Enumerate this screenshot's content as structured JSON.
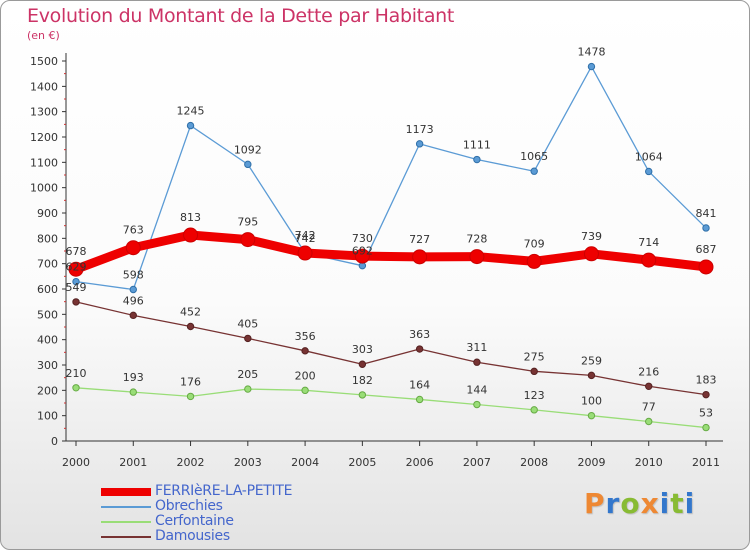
{
  "header": {
    "title": "Evolution du Montant de la Dette par Habitant",
    "subtitle": "(en €)"
  },
  "chart_data": {
    "type": "line",
    "title": "Evolution du Montant de la Dette par Habitant",
    "subtitle": "(en €)",
    "x": [
      "2000",
      "2001",
      "2002",
      "2003",
      "2004",
      "2005",
      "2006",
      "2007",
      "2008",
      "2009",
      "2010",
      "2011"
    ],
    "ylim": [
      0,
      1500
    ],
    "yticks": [
      0,
      100,
      200,
      300,
      400,
      500,
      600,
      700,
      800,
      900,
      1000,
      1100,
      1200,
      1300,
      1400,
      1500
    ],
    "grid": false,
    "legend_position": "bottom-left",
    "series": [
      {
        "name": "FERRIèRE-LA-PETITE",
        "color": "#ee0000",
        "values": [
          678,
          763,
          813,
          795,
          742,
          730,
          727,
          728,
          709,
          739,
          714,
          687
        ]
      },
      {
        "name": "Obrechies",
        "color": "#5b9bd5",
        "values": [
          629,
          598,
          1245,
          1092,
          742,
          692,
          1173,
          1111,
          1065,
          1478,
          1064,
          841
        ]
      },
      {
        "name": "Cerfontaine",
        "color": "#99dd77",
        "values": [
          210,
          193,
          176,
          205,
          200,
          182,
          164,
          144,
          123,
          100,
          77,
          53
        ]
      },
      {
        "name": "Damousies",
        "color": "#773333",
        "values": [
          549,
          496,
          452,
          405,
          356,
          303,
          363,
          311,
          275,
          259,
          216,
          183
        ]
      }
    ]
  },
  "logo": {
    "letters": [
      {
        "char": "P",
        "color": "#ee8833"
      },
      {
        "char": "r",
        "color": "#3377cc"
      },
      {
        "char": "o",
        "color": "#88bb33"
      },
      {
        "char": "x",
        "color": "#ee8833"
      },
      {
        "char": "i",
        "color": "#3377cc"
      },
      {
        "char": "t",
        "color": "#88bb33"
      },
      {
        "char": "i",
        "color": "#3377cc"
      }
    ]
  }
}
